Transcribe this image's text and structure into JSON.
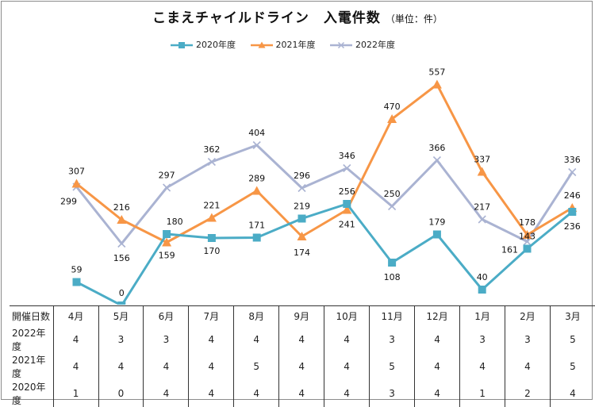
{
  "title": "こまえチャイルドライン　入電件数",
  "unit": "（単位：件）",
  "colors": {
    "s2020": "#4bacc6",
    "s2021": "#f79646",
    "s2022": "#aab3d2"
  },
  "chart_data": {
    "type": "line",
    "title": "こまえチャイルドライン　入電件数",
    "categories": [
      "4月",
      "5月",
      "6月",
      "7月",
      "8月",
      "9月",
      "10月",
      "11月",
      "12月",
      "1月",
      "2月",
      "3月"
    ],
    "ylim": [
      0,
      600
    ],
    "grid": false,
    "legend_position": "top",
    "series": [
      {
        "name": "2020年度",
        "color": "#4bacc6",
        "marker": "square",
        "values": [
          59,
          0,
          180,
          170,
          171,
          219,
          256,
          108,
          179,
          40,
          143,
          236
        ]
      },
      {
        "name": "2021年度",
        "color": "#f79646",
        "marker": "triangle",
        "values": [
          307,
          216,
          159,
          221,
          289,
          174,
          241,
          470,
          557,
          337,
          178,
          246
        ]
      },
      {
        "name": "2022年度",
        "color": "#aab3d2",
        "marker": "x",
        "values": [
          299,
          156,
          297,
          362,
          404,
          296,
          346,
          250,
          366,
          217,
          161,
          336
        ]
      }
    ]
  },
  "table": {
    "header_label": "開催日数",
    "months": [
      "4月",
      "5月",
      "6月",
      "7月",
      "8月",
      "9月",
      "10月",
      "11月",
      "12月",
      "1月",
      "2月",
      "3月"
    ],
    "rows": [
      {
        "label": "2022年度",
        "values": [
          "4",
          "3",
          "3",
          "4",
          "4",
          "4",
          "4",
          "3",
          "4",
          "3",
          "3",
          "5"
        ]
      },
      {
        "label": "2021年度",
        "values": [
          "4",
          "4",
          "4",
          "4",
          "5",
          "4",
          "4",
          "5",
          "4",
          "4",
          "4",
          "5"
        ]
      },
      {
        "label": "2020年度",
        "values": [
          "1",
          "0",
          "4",
          "4",
          "4",
          "4",
          "4",
          "3",
          "4",
          "1",
          "2",
          "4"
        ]
      }
    ]
  }
}
